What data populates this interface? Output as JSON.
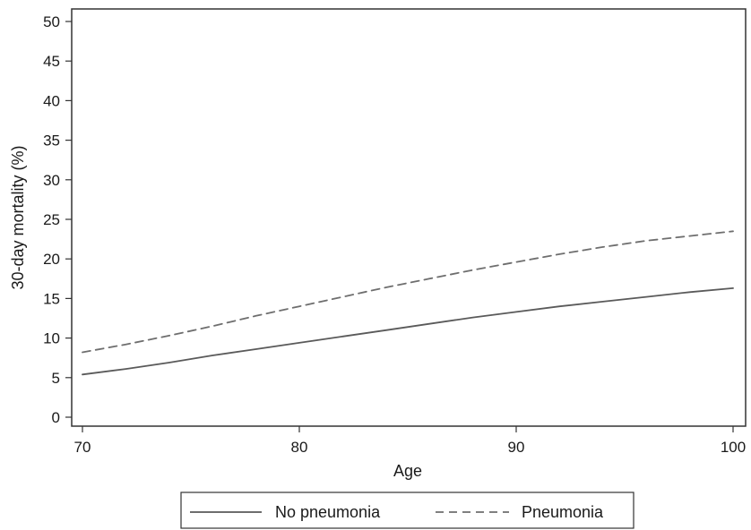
{
  "chart_data": {
    "type": "line",
    "title": "",
    "xlabel": "Age",
    "ylabel": "30-day mortality (%)",
    "xlim": [
      70,
      100
    ],
    "ylim": [
      0,
      50
    ],
    "x_ticks": [
      70,
      80,
      90,
      100
    ],
    "y_ticks": [
      0,
      5,
      10,
      15,
      20,
      25,
      30,
      35,
      40,
      45,
      50
    ],
    "grid": false,
    "legend_position": "bottom",
    "series": [
      {
        "name": "No pneumonia",
        "style": "solid",
        "color": "#5a5a5a",
        "x": [
          70,
          72,
          74,
          76,
          78,
          80,
          82,
          84,
          86,
          88,
          90,
          92,
          94,
          96,
          98,
          100
        ],
        "y": [
          5.4,
          6.1,
          6.9,
          7.8,
          8.6,
          9.4,
          10.2,
          11.0,
          11.8,
          12.6,
          13.3,
          14.0,
          14.6,
          15.2,
          15.8,
          16.3
        ]
      },
      {
        "name": "Pneumonia",
        "style": "dashed",
        "color": "#6e6e6e",
        "x": [
          70,
          72,
          74,
          76,
          78,
          80,
          82,
          84,
          86,
          88,
          90,
          92,
          94,
          96,
          98,
          100
        ],
        "y": [
          8.2,
          9.2,
          10.3,
          11.5,
          12.8,
          14.0,
          15.2,
          16.4,
          17.5,
          18.6,
          19.6,
          20.6,
          21.5,
          22.3,
          22.9,
          23.5
        ]
      }
    ]
  }
}
